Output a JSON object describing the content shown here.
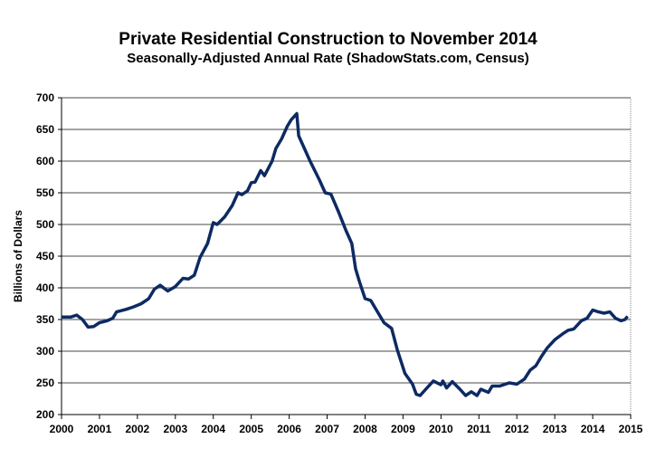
{
  "chart_data": {
    "type": "line",
    "title": "Private Residential Construction to November 2014",
    "subtitle": "Seasonally-Adjusted Annual Rate (ShadowStats.com, Census)",
    "xlabel": "",
    "ylabel": "Billions  of Dollars",
    "xlim": [
      2000,
      2015
    ],
    "ylim": [
      200,
      700
    ],
    "xticks": [
      "2000",
      "2001",
      "2002",
      "2003",
      "2004",
      "2005",
      "2006",
      "2007",
      "2008",
      "2009",
      "2010",
      "2011",
      "2012",
      "2013",
      "2014",
      "2015"
    ],
    "yticks": [
      "200",
      "250",
      "300",
      "350",
      "400",
      "450",
      "500",
      "550",
      "600",
      "650",
      "700"
    ],
    "grid": true,
    "line_color": "#0d2a63",
    "series": [
      {
        "name": "Private Residential Construction",
        "x": [
          2000.0,
          2000.25,
          2000.4,
          2000.55,
          2000.7,
          2000.85,
          2001.0,
          2001.2,
          2001.35,
          2001.45,
          2001.7,
          2001.9,
          2002.1,
          2002.3,
          2002.45,
          2002.6,
          2002.8,
          2003.0,
          2003.2,
          2003.35,
          2003.5,
          2003.65,
          2003.85,
          2004.0,
          2004.1,
          2004.3,
          2004.5,
          2004.65,
          2004.75,
          2004.9,
          2005.0,
          2005.1,
          2005.25,
          2005.35,
          2005.55,
          2005.65,
          2005.8,
          2005.95,
          2006.05,
          2006.2,
          2006.25,
          2006.4,
          2006.55,
          2006.8,
          2006.95,
          2007.1,
          2007.3,
          2007.5,
          2007.65,
          2007.75,
          2007.85,
          2008.0,
          2008.15,
          2008.3,
          2008.5,
          2008.7,
          2008.85,
          2009.05,
          2009.25,
          2009.35,
          2009.45,
          2009.6,
          2009.8,
          2010.0,
          2010.05,
          2010.15,
          2010.3,
          2010.5,
          2010.65,
          2010.8,
          2010.95,
          2011.05,
          2011.25,
          2011.35,
          2011.55,
          2011.8,
          2012.0,
          2012.2,
          2012.35,
          2012.5,
          2012.65,
          2012.8,
          2013.0,
          2013.2,
          2013.35,
          2013.5,
          2013.7,
          2013.85,
          2014.0,
          2014.15,
          2014.3,
          2014.45,
          2014.6,
          2014.75,
          2014.85,
          2014.92
        ],
        "values": [
          354,
          354,
          357,
          350,
          338,
          339,
          345,
          348,
          352,
          362,
          366,
          370,
          375,
          383,
          398,
          404,
          395,
          402,
          415,
          414,
          420,
          448,
          470,
          503,
          500,
          512,
          530,
          550,
          547,
          553,
          566,
          567,
          585,
          577,
          600,
          620,
          635,
          655,
          665,
          675,
          640,
          620,
          600,
          570,
          550,
          548,
          520,
          490,
          470,
          430,
          410,
          383,
          380,
          365,
          345,
          336,
          302,
          265,
          248,
          232,
          230,
          240,
          253,
          247,
          253,
          242,
          252,
          240,
          230,
          236,
          230,
          240,
          235,
          245,
          245,
          250,
          248,
          256,
          270,
          277,
          292,
          305,
          318,
          327,
          333,
          335,
          348,
          352,
          365,
          362,
          360,
          362,
          352,
          348,
          350,
          355
        ]
      }
    ]
  }
}
